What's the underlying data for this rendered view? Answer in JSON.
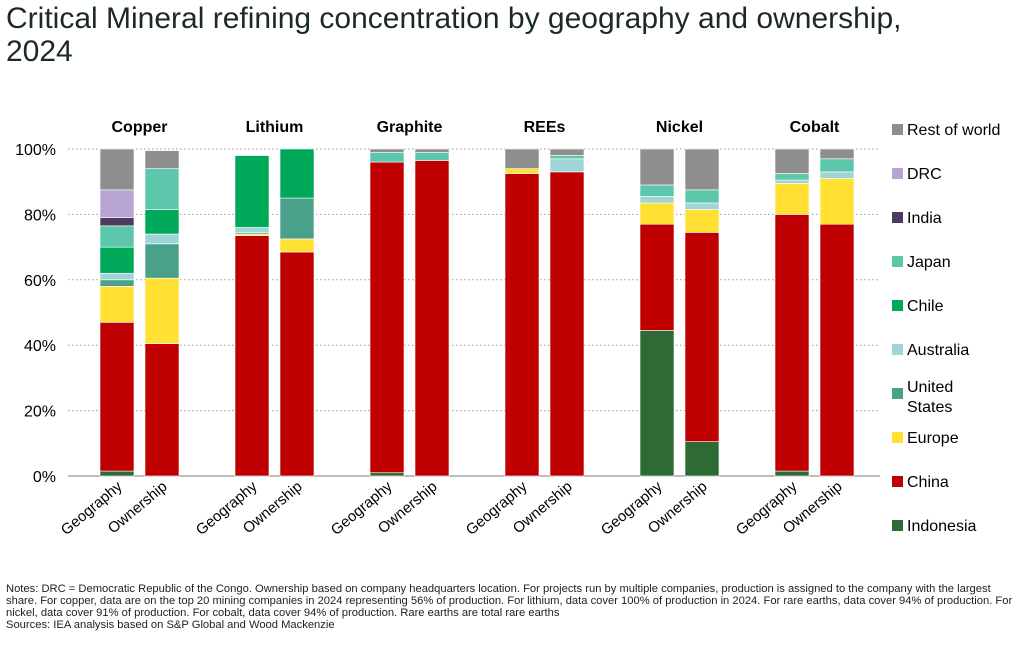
{
  "title": "Critical Mineral refining concentration by geography and ownership, 2024",
  "notes": [
    "Notes: DRC = Democratic Republic of the Congo. Ownership based on company headquarters location. For projects run by multiple companies, production is assigned to the company with the largest share. For copper, data are on the top 20 mining companies in 2024 representing 56% of production. For lithium, data cover 100% of production in 2024. For rare earths, data cover 94% of production. For nickel, data cover 91% of production. For cobalt, data cover 94% of production. Rare earths are total rare earths",
    "Sources: IEA analysis based on S&P Global and Wood Mackenzie"
  ],
  "chart_data": {
    "type": "bar",
    "stacked": true,
    "y_unit": "%",
    "ylim": [
      0,
      100
    ],
    "yticks": [
      "0%",
      "20%",
      "40%",
      "60%",
      "80%",
      "100%"
    ],
    "grid": "horizontal dotted",
    "legend_position": "right",
    "groups": [
      "Copper",
      "Lithium",
      "Graphite",
      "REEs",
      "Nickel",
      "Cobalt"
    ],
    "bar_labels": [
      "Geography",
      "Ownership"
    ],
    "series": [
      {
        "name": "Indonesia",
        "color": "#2e6b34",
        "values": [
          [
            1.5,
            0
          ],
          [
            0,
            0
          ],
          [
            1,
            0
          ],
          [
            0,
            0
          ],
          [
            44.5,
            10.5
          ],
          [
            1.5,
            0
          ]
        ]
      },
      {
        "name": "China",
        "color": "#c00000",
        "values": [
          [
            45.5,
            40.5
          ],
          [
            73.5,
            68.5
          ],
          [
            95,
            96.5
          ],
          [
            92.5,
            93
          ],
          [
            32.5,
            64
          ],
          [
            78.5,
            77
          ]
        ]
      },
      {
        "name": "Europe",
        "color": "#ffe033",
        "values": [
          [
            11,
            20
          ],
          [
            0.5,
            4
          ],
          [
            0,
            0
          ],
          [
            1.5,
            0
          ],
          [
            6.5,
            7
          ],
          [
            9.5,
            14
          ]
        ]
      },
      {
        "name": "United States",
        "color": "#4aa18a",
        "values": [
          [
            2,
            10.5
          ],
          [
            0.5,
            12.5
          ],
          [
            0,
            0
          ],
          [
            0,
            0
          ],
          [
            0,
            0
          ],
          [
            0,
            0
          ]
        ]
      },
      {
        "name": "Australia",
        "color": "#9fd5d6",
        "values": [
          [
            2,
            3
          ],
          [
            1.5,
            0
          ],
          [
            0,
            0
          ],
          [
            0,
            4
          ],
          [
            2,
            2
          ],
          [
            1,
            2
          ]
        ]
      },
      {
        "name": "Chile",
        "color": "#00a859",
        "values": [
          [
            8,
            7.5
          ],
          [
            22,
            15
          ],
          [
            0,
            0
          ],
          [
            0,
            0
          ],
          [
            0,
            0
          ],
          [
            0,
            0
          ]
        ]
      },
      {
        "name": "Japan",
        "color": "#5cc7ab",
        "values": [
          [
            6.5,
            12.5
          ],
          [
            0,
            0
          ],
          [
            3,
            2.5
          ],
          [
            0,
            1
          ],
          [
            3.5,
            4
          ],
          [
            2,
            4
          ]
        ]
      },
      {
        "name": "India",
        "color": "#4b3b5e",
        "values": [
          [
            2.5,
            0
          ],
          [
            0,
            0
          ],
          [
            0,
            0
          ],
          [
            0,
            0
          ],
          [
            0,
            0
          ],
          [
            0,
            0
          ]
        ]
      },
      {
        "name": "DRC",
        "color": "#b8a4d0",
        "values": [
          [
            8.5,
            0
          ],
          [
            0,
            0
          ],
          [
            0,
            0
          ],
          [
            0,
            0
          ],
          [
            0,
            0
          ],
          [
            0,
            0
          ]
        ]
      },
      {
        "name": "Rest of world",
        "color": "#8e8e8e",
        "values": [
          [
            12.5,
            5.5
          ],
          [
            0,
            0
          ],
          [
            1,
            1
          ],
          [
            6,
            2
          ],
          [
            11,
            12.5
          ],
          [
            7.5,
            3
          ]
        ]
      }
    ],
    "legend_order": [
      "Rest of world",
      "DRC",
      "India",
      "Japan",
      "Chile",
      "Australia",
      "United States",
      "Europe",
      "China",
      "Indonesia"
    ]
  }
}
